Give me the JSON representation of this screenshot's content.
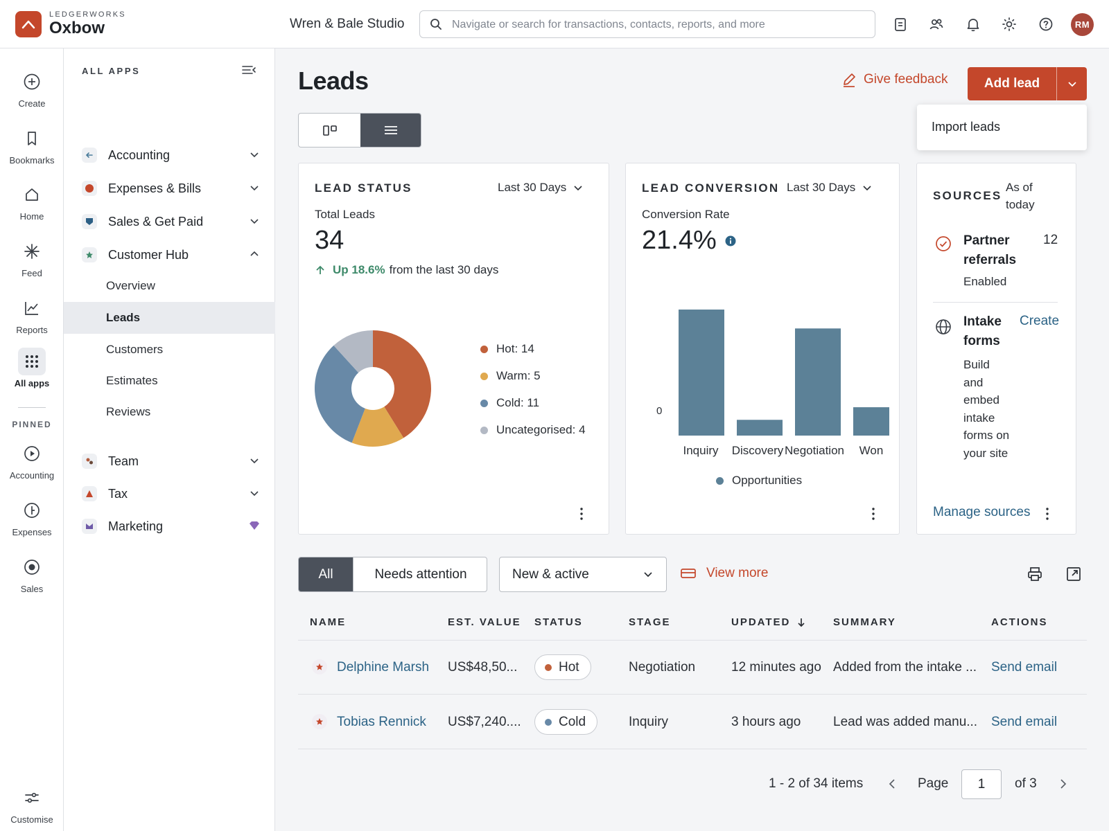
{
  "header": {
    "brand_small": "LEDGERWORKS",
    "brand_big": "Oxbow",
    "company": "Wren & Bale Studio",
    "search_placeholder": "Navigate or search for transactions, contacts, reports, and more",
    "avatar_initials": "RM"
  },
  "rail": {
    "items": [
      {
        "label": "Create",
        "icon": "plus-circle-icon"
      },
      {
        "label": "Bookmarks",
        "icon": "bookmark-icon"
      },
      {
        "label": "Home",
        "icon": "home-icon"
      },
      {
        "label": "Feed",
        "icon": "sparkle-icon"
      },
      {
        "label": "Reports",
        "icon": "chart-line-icon"
      },
      {
        "label": "All apps",
        "icon": "grid-icon"
      }
    ],
    "pinned_label": "PINNED",
    "pinned": [
      {
        "label": "Accounting",
        "icon": "play-circle-icon"
      },
      {
        "label": "Expenses",
        "icon": "expenses-circle-icon"
      },
      {
        "label": "Sales",
        "icon": "sales-circle-icon"
      }
    ],
    "customise": "Customise"
  },
  "apps": {
    "title": "ALL APPS",
    "items": [
      {
        "label": "Accounting",
        "color": "#4a7c9b"
      },
      {
        "label": "Expenses & Bills",
        "color": "#c4472b"
      },
      {
        "label": "Sales & Get Paid",
        "color": "#2c5f85"
      },
      {
        "label": "Customer Hub",
        "color": "#3e8a6a"
      },
      {
        "label": "Team",
        "color": "#b05a3c"
      },
      {
        "label": "Tax",
        "color": "#c4472b"
      },
      {
        "label": "Marketing",
        "color": "#6e5aa8"
      }
    ],
    "customer_hub_sub": [
      "Overview",
      "Leads",
      "Customers",
      "Estimates",
      "Reviews"
    ]
  },
  "main": {
    "title": "Leads",
    "feedback": "Give feedback",
    "add_lead": "Add lead",
    "menu_item": "Import leads"
  },
  "lead_status": {
    "title": "LEAD STATUS",
    "period": "Last 30 Days",
    "total_label": "Total Leads",
    "total": "34",
    "trend_up": "Up 18.6%",
    "trend_rest": "from the last 30 days",
    "legend": [
      "Hot: 14",
      "Warm: 5",
      "Cold: 11",
      "Uncategorised: 4"
    ]
  },
  "lead_conversion": {
    "title": "LEAD CONVERSION",
    "period": "Last 30 Days",
    "rate_label": "Conversion Rate",
    "rate": "21.4%",
    "zero_label": "0",
    "legend": "Opportunities"
  },
  "sources": {
    "title": "SOURCES",
    "as_of": "As of today",
    "partner_title": "Partner referrals",
    "partner_count": "12",
    "partner_status": "Enabled",
    "intake_title": "Intake forms",
    "intake_create": "Create",
    "intake_desc": "Build and embed intake forms on your site",
    "manage": "Manage sources"
  },
  "filters": {
    "all": "All",
    "needs_attention": "Needs attention",
    "select_value": "New & active",
    "view_more": "View more"
  },
  "table": {
    "headers": [
      "NAME",
      "EST. VALUE",
      "STATUS",
      "STAGE",
      "UPDATED",
      "SUMMARY",
      "ACTIONS"
    ],
    "rows": [
      {
        "name": "Delphine Marsh",
        "value": "US$48,50...",
        "status": "Hot",
        "stage": "Negotiation",
        "updated": "12 minutes ago",
        "summary": "Added from the intake ...",
        "action": "Send email"
      },
      {
        "name": "Tobias Rennick",
        "value": "US$7,240....",
        "status": "Cold",
        "stage": "Inquiry",
        "updated": "3 hours ago",
        "summary": "Lead was added manu...",
        "action": "Send email"
      }
    ]
  },
  "pager": {
    "range": "1 - 2 of 34 items",
    "page_label": "Page",
    "page_value": "1",
    "of_label": "of 3"
  },
  "chart_data": [
    {
      "type": "pie",
      "title": "LEAD STATUS",
      "categories": [
        "Hot",
        "Warm",
        "Cold",
        "Uncategorised"
      ],
      "values": [
        14,
        5,
        11,
        4
      ],
      "colors": [
        "#c1613b",
        "#e0a94f",
        "#6889a7",
        "#b3b9c4"
      ],
      "donut": true
    },
    {
      "type": "bar",
      "title": "LEAD CONVERSION",
      "categories": [
        "Inquiry",
        "Discovery",
        "Negotiation",
        "Won"
      ],
      "series": [
        {
          "name": "Opportunities",
          "values": [
            20,
            2.5,
            17,
            4.5
          ]
        }
      ],
      "color": "#5c8197",
      "ylim": [
        0,
        20
      ],
      "legend": "bottom"
    }
  ]
}
